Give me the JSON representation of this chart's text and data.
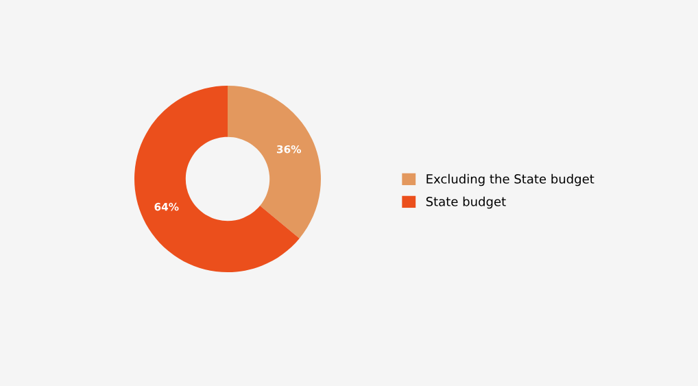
{
  "chart_data": {
    "type": "donut",
    "categories": [
      "Excluding the State budget",
      "State budget"
    ],
    "values": [
      36,
      64
    ],
    "colors": [
      "#e3985e",
      "#eb4f1c"
    ],
    "value_labels": [
      "36%",
      "64%"
    ],
    "legend": "right"
  }
}
